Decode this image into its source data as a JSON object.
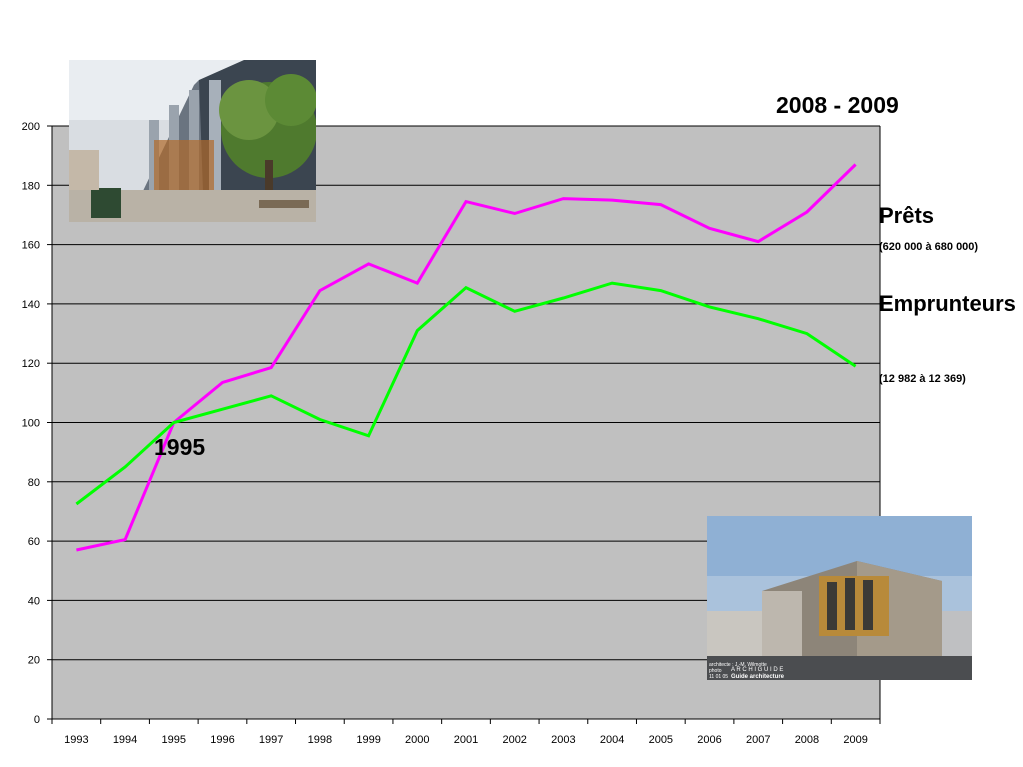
{
  "chart_data": {
    "type": "line",
    "x": [
      "1993",
      "1994",
      "1995",
      "1996",
      "1997",
      "1998",
      "1999",
      "2000",
      "2001",
      "2002",
      "2003",
      "2004",
      "2005",
      "2006",
      "2007",
      "2008",
      "2009"
    ],
    "series": [
      {
        "name": "Prêts",
        "color": "#ff00ff",
        "values": [
          57,
          60.5,
          100,
          113.5,
          118.5,
          144.5,
          153.5,
          147,
          174.5,
          170.5,
          175.5,
          175,
          173.5,
          165.5,
          161,
          171,
          187
        ]
      },
      {
        "name": "Emprunteurs",
        "color": "#00ff00",
        "values": [
          72.5,
          85,
          100,
          104.5,
          109,
          101,
          95.5,
          131,
          145.5,
          137.5,
          142,
          147,
          144.5,
          139,
          135,
          130,
          119
        ]
      }
    ],
    "ylim": [
      0,
      200
    ],
    "yticks": [
      0,
      20,
      40,
      60,
      80,
      100,
      120,
      140,
      160,
      180,
      200
    ],
    "grid": true,
    "plot_background": "#c0c0c0"
  },
  "labels": {
    "period": "2008 - 2009",
    "prets_title": "Prêts",
    "prets_range": "(620 000 à 680 000)",
    "emprunteurs_title": "Emprunteurs",
    "emprunteurs_range": "(12 982 à  12 369)",
    "annotation_year": "1995"
  },
  "photo_credit": {
    "line1": "architecte : J.-M. Wilmotte",
    "line2": "photo",
    "line3": "11 01 05",
    "brand1": "A R C H I G U I D E",
    "brand2": "Guide architecture"
  }
}
